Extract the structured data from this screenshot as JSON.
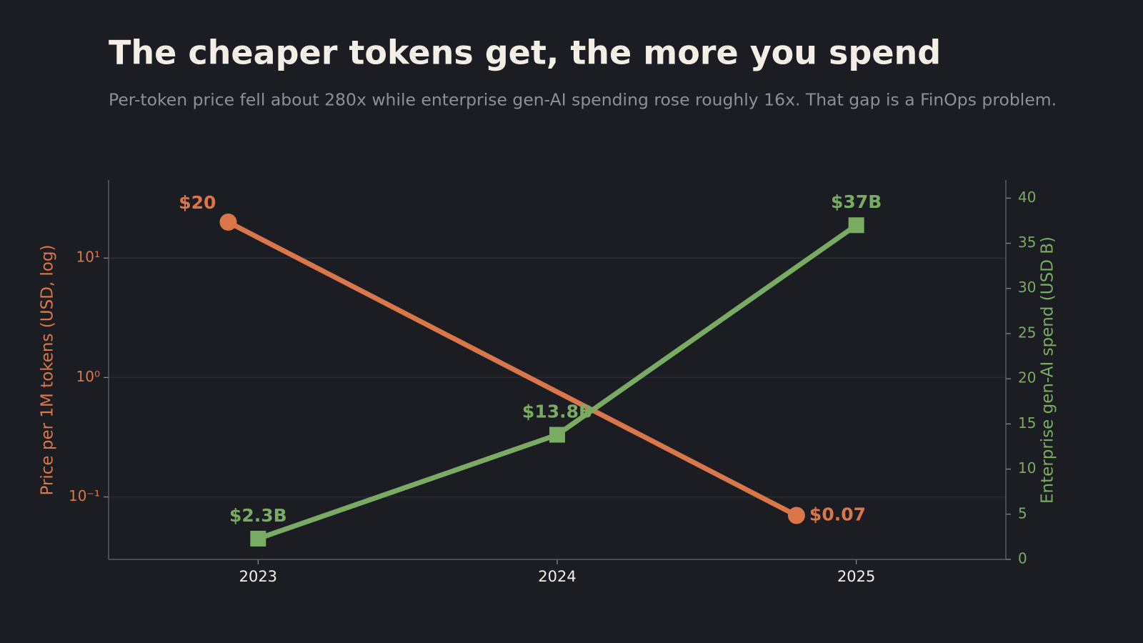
{
  "chart_data": {
    "type": "line",
    "title": "The cheaper tokens get, the more you spend",
    "subtitle": "Per-token price fell about 280x while enterprise gen-AI spending rose roughly 16x. That gap is a FinOps problem.",
    "ylabel": "Price per 1M tokens (USD, log)",
    "y2label": "Enterprise gen-AI spend (USD B)",
    "xlim": [
      2022.5,
      2025.5
    ],
    "xticks": [
      2023,
      2024,
      2025
    ],
    "ylim": [
      0.03,
      45
    ],
    "yscale": "log",
    "yticks": [
      {
        "value": 0.1,
        "label": "10⁻¹"
      },
      {
        "value": 1,
        "label": "10⁰"
      },
      {
        "value": 10,
        "label": "10¹"
      }
    ],
    "y2lim": [
      0,
      42
    ],
    "y2ticks": [
      0,
      5,
      10,
      15,
      20,
      25,
      30,
      35,
      40
    ],
    "grid": true,
    "series": [
      {
        "name": "Price per 1M tokens",
        "color": "#d9774a",
        "marker": "circle",
        "x": [
          2022.9,
          2024.8
        ],
        "values": [
          20,
          0.07
        ],
        "value_labels": [
          "$20",
          "$0.07"
        ]
      },
      {
        "name": "Enterprise gen-AI spend",
        "color": "#7aab62",
        "marker": "square",
        "axis": "y2",
        "x": [
          2023,
          2024,
          2025
        ],
        "values": [
          2.3,
          13.8,
          37
        ],
        "value_labels": [
          "$2.3B",
          "$13.8B",
          "$37B"
        ]
      }
    ]
  }
}
